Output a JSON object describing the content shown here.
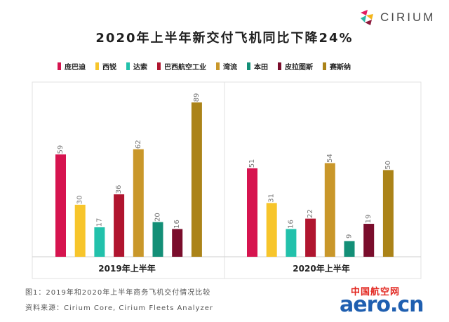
{
  "brand": {
    "name": "CIRIUM",
    "logo_icon": "cirium-logo-icon"
  },
  "caption": {
    "figure": "图1：2019年和2020年上半年商务飞机交付情况比较",
    "source": "资料来源：Cirium Core, Cirium Fleets Analyzer"
  },
  "watermark": {
    "cn": "中国航空网",
    "en": "aero.cn"
  },
  "chart_data": {
    "type": "bar",
    "title": "2020年上半年新交付飞机同比下降24%",
    "categories": [
      "2019年上半年",
      "2020年上半年"
    ],
    "series": [
      {
        "name": "庞巴迪",
        "color": "#d6144f",
        "values": [
          59,
          51
        ]
      },
      {
        "name": "西锐",
        "color": "#f7c52b",
        "values": [
          30,
          31
        ]
      },
      {
        "name": "达索",
        "color": "#22c1ab",
        "values": [
          17,
          16
        ]
      },
      {
        "name": "巴西航空工业",
        "color": "#b0152f",
        "values": [
          36,
          22
        ]
      },
      {
        "name": "湾流",
        "color": "#c9972a",
        "values": [
          62,
          54
        ]
      },
      {
        "name": "本田",
        "color": "#138f77",
        "values": [
          20,
          9
        ]
      },
      {
        "name": "皮拉图斯",
        "color": "#7a0d2c",
        "values": [
          16,
          19
        ]
      },
      {
        "name": "赛斯纳",
        "color": "#ab8318",
        "values": [
          89,
          50
        ]
      }
    ],
    "ylim": [
      0,
      89
    ],
    "data_labels": true,
    "legend": "top",
    "grid": false
  }
}
